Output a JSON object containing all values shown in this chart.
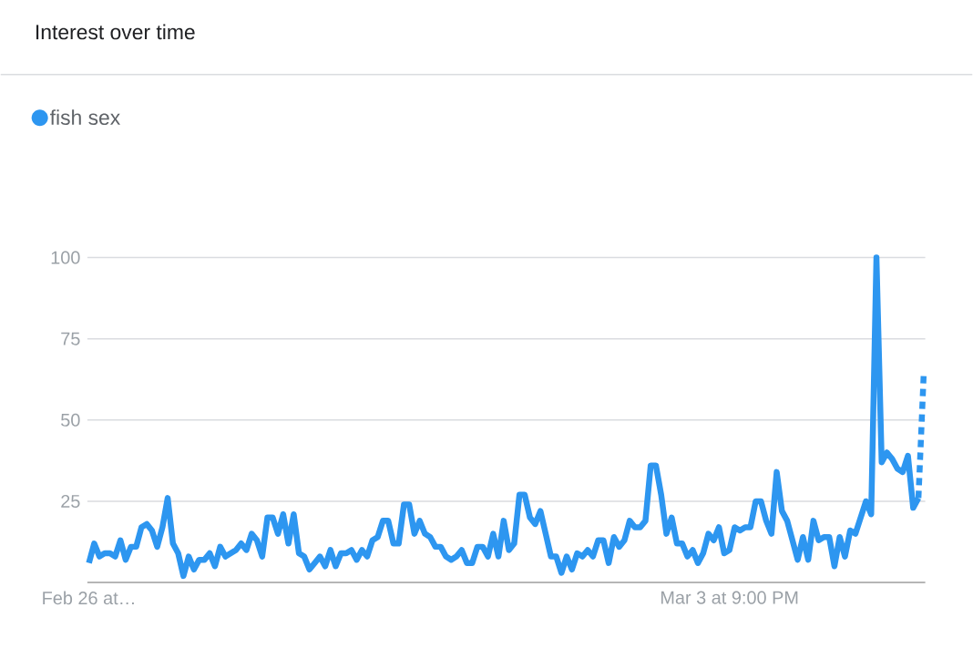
{
  "chart_data": {
    "type": "line",
    "title": "Interest over time",
    "categories": [
      "Feb 26 at…",
      null,
      null,
      null,
      null,
      null,
      null,
      null,
      null,
      null,
      null,
      null,
      null,
      null,
      null,
      null,
      null,
      null,
      null,
      null,
      null,
      null,
      null,
      null,
      null,
      null,
      null,
      null,
      null,
      null,
      null,
      null,
      null,
      null,
      null,
      null,
      null,
      null,
      null,
      null,
      null,
      null,
      null,
      null,
      null,
      null,
      null,
      null,
      null,
      null,
      null,
      null,
      null,
      null,
      null,
      null,
      null,
      null,
      null,
      null,
      null,
      null,
      null,
      null,
      null,
      null,
      null,
      null,
      null,
      null,
      null,
      null,
      null,
      null,
      null,
      null,
      null,
      null,
      null,
      null,
      null,
      null,
      null,
      null,
      null,
      null,
      null,
      null,
      null,
      null,
      null,
      null,
      null,
      null,
      null,
      null,
      null,
      null,
      null,
      null,
      null,
      null,
      null,
      null,
      null,
      null,
      null,
      null,
      null,
      null,
      null,
      null,
      null,
      null,
      null,
      null,
      null,
      null,
      null,
      null,
      null,
      null,
      "Mar 3 at 9:00 PM",
      null,
      null,
      null,
      null,
      null,
      null,
      null,
      null,
      null,
      null,
      null,
      null,
      null,
      null,
      null,
      null,
      null,
      null,
      null,
      null,
      null,
      null,
      null,
      null,
      null,
      null,
      null,
      null,
      null,
      null,
      null,
      null,
      null,
      null,
      null,
      null,
      null
    ],
    "series": [
      {
        "name": "fish sex",
        "color": "#2d96f0",
        "line_style": "solid",
        "values": [
          6,
          12,
          8,
          9,
          9,
          8,
          13,
          7,
          11,
          11,
          17,
          18,
          16,
          11,
          17,
          26,
          12,
          9,
          2,
          8,
          4,
          7,
          7,
          9,
          5,
          11,
          8,
          9,
          10,
          12,
          10,
          15,
          13,
          8,
          20,
          20,
          15,
          21,
          12,
          21,
          9,
          8,
          4,
          6,
          8,
          5,
          10,
          5,
          9,
          9,
          10,
          7,
          10,
          8,
          13,
          14,
          19,
          19,
          12,
          12,
          24,
          24,
          15,
          19,
          15,
          14,
          11,
          11,
          8,
          7,
          8,
          10,
          6,
          6,
          11,
          11,
          8,
          15,
          8,
          19,
          10,
          12,
          27,
          27,
          20,
          18,
          22,
          15,
          8,
          8,
          3,
          8,
          4,
          9,
          8,
          10,
          8,
          13,
          13,
          6,
          14,
          11,
          13,
          19,
          17,
          17,
          19,
          36,
          36,
          27,
          15,
          20,
          12,
          12,
          8,
          10,
          6,
          9,
          15,
          13,
          17,
          9,
          10,
          17,
          16,
          17,
          17,
          25,
          25,
          19,
          15,
          34,
          22,
          19,
          13,
          7,
          14,
          7,
          19,
          13,
          14,
          14,
          5,
          14,
          8,
          16,
          15,
          20,
          25,
          21,
          100,
          37,
          40,
          38,
          35,
          34,
          39,
          23,
          26,
          null
        ]
      },
      {
        "color": "#2d96f0",
        "line_style": "dotted",
        "values": [
          null,
          null,
          null,
          null,
          null,
          null,
          null,
          null,
          null,
          null,
          null,
          null,
          null,
          null,
          null,
          null,
          null,
          null,
          null,
          null,
          null,
          null,
          null,
          null,
          null,
          null,
          null,
          null,
          null,
          null,
          null,
          null,
          null,
          null,
          null,
          null,
          null,
          null,
          null,
          null,
          null,
          null,
          null,
          null,
          null,
          null,
          null,
          null,
          null,
          null,
          null,
          null,
          null,
          null,
          null,
          null,
          null,
          null,
          null,
          null,
          null,
          null,
          null,
          null,
          null,
          null,
          null,
          null,
          null,
          null,
          null,
          null,
          null,
          null,
          null,
          null,
          null,
          null,
          null,
          null,
          null,
          null,
          null,
          null,
          null,
          null,
          null,
          null,
          null,
          null,
          null,
          null,
          null,
          null,
          null,
          null,
          null,
          null,
          null,
          null,
          null,
          null,
          null,
          null,
          null,
          null,
          null,
          null,
          null,
          null,
          null,
          null,
          null,
          null,
          null,
          null,
          null,
          null,
          null,
          null,
          null,
          null,
          null,
          null,
          null,
          null,
          null,
          null,
          null,
          null,
          null,
          null,
          null,
          null,
          null,
          null,
          null,
          null,
          null,
          null,
          null,
          null,
          null,
          null,
          null,
          null,
          null,
          null,
          null,
          null,
          null,
          null,
          null,
          null,
          null,
          null,
          null,
          null,
          26,
          64
        ]
      }
    ],
    "ylim": [
      0,
      100
    ],
    "yticks": [
      25,
      50,
      75,
      100
    ],
    "grid": "y",
    "legend": "top left",
    "marker": "none"
  }
}
